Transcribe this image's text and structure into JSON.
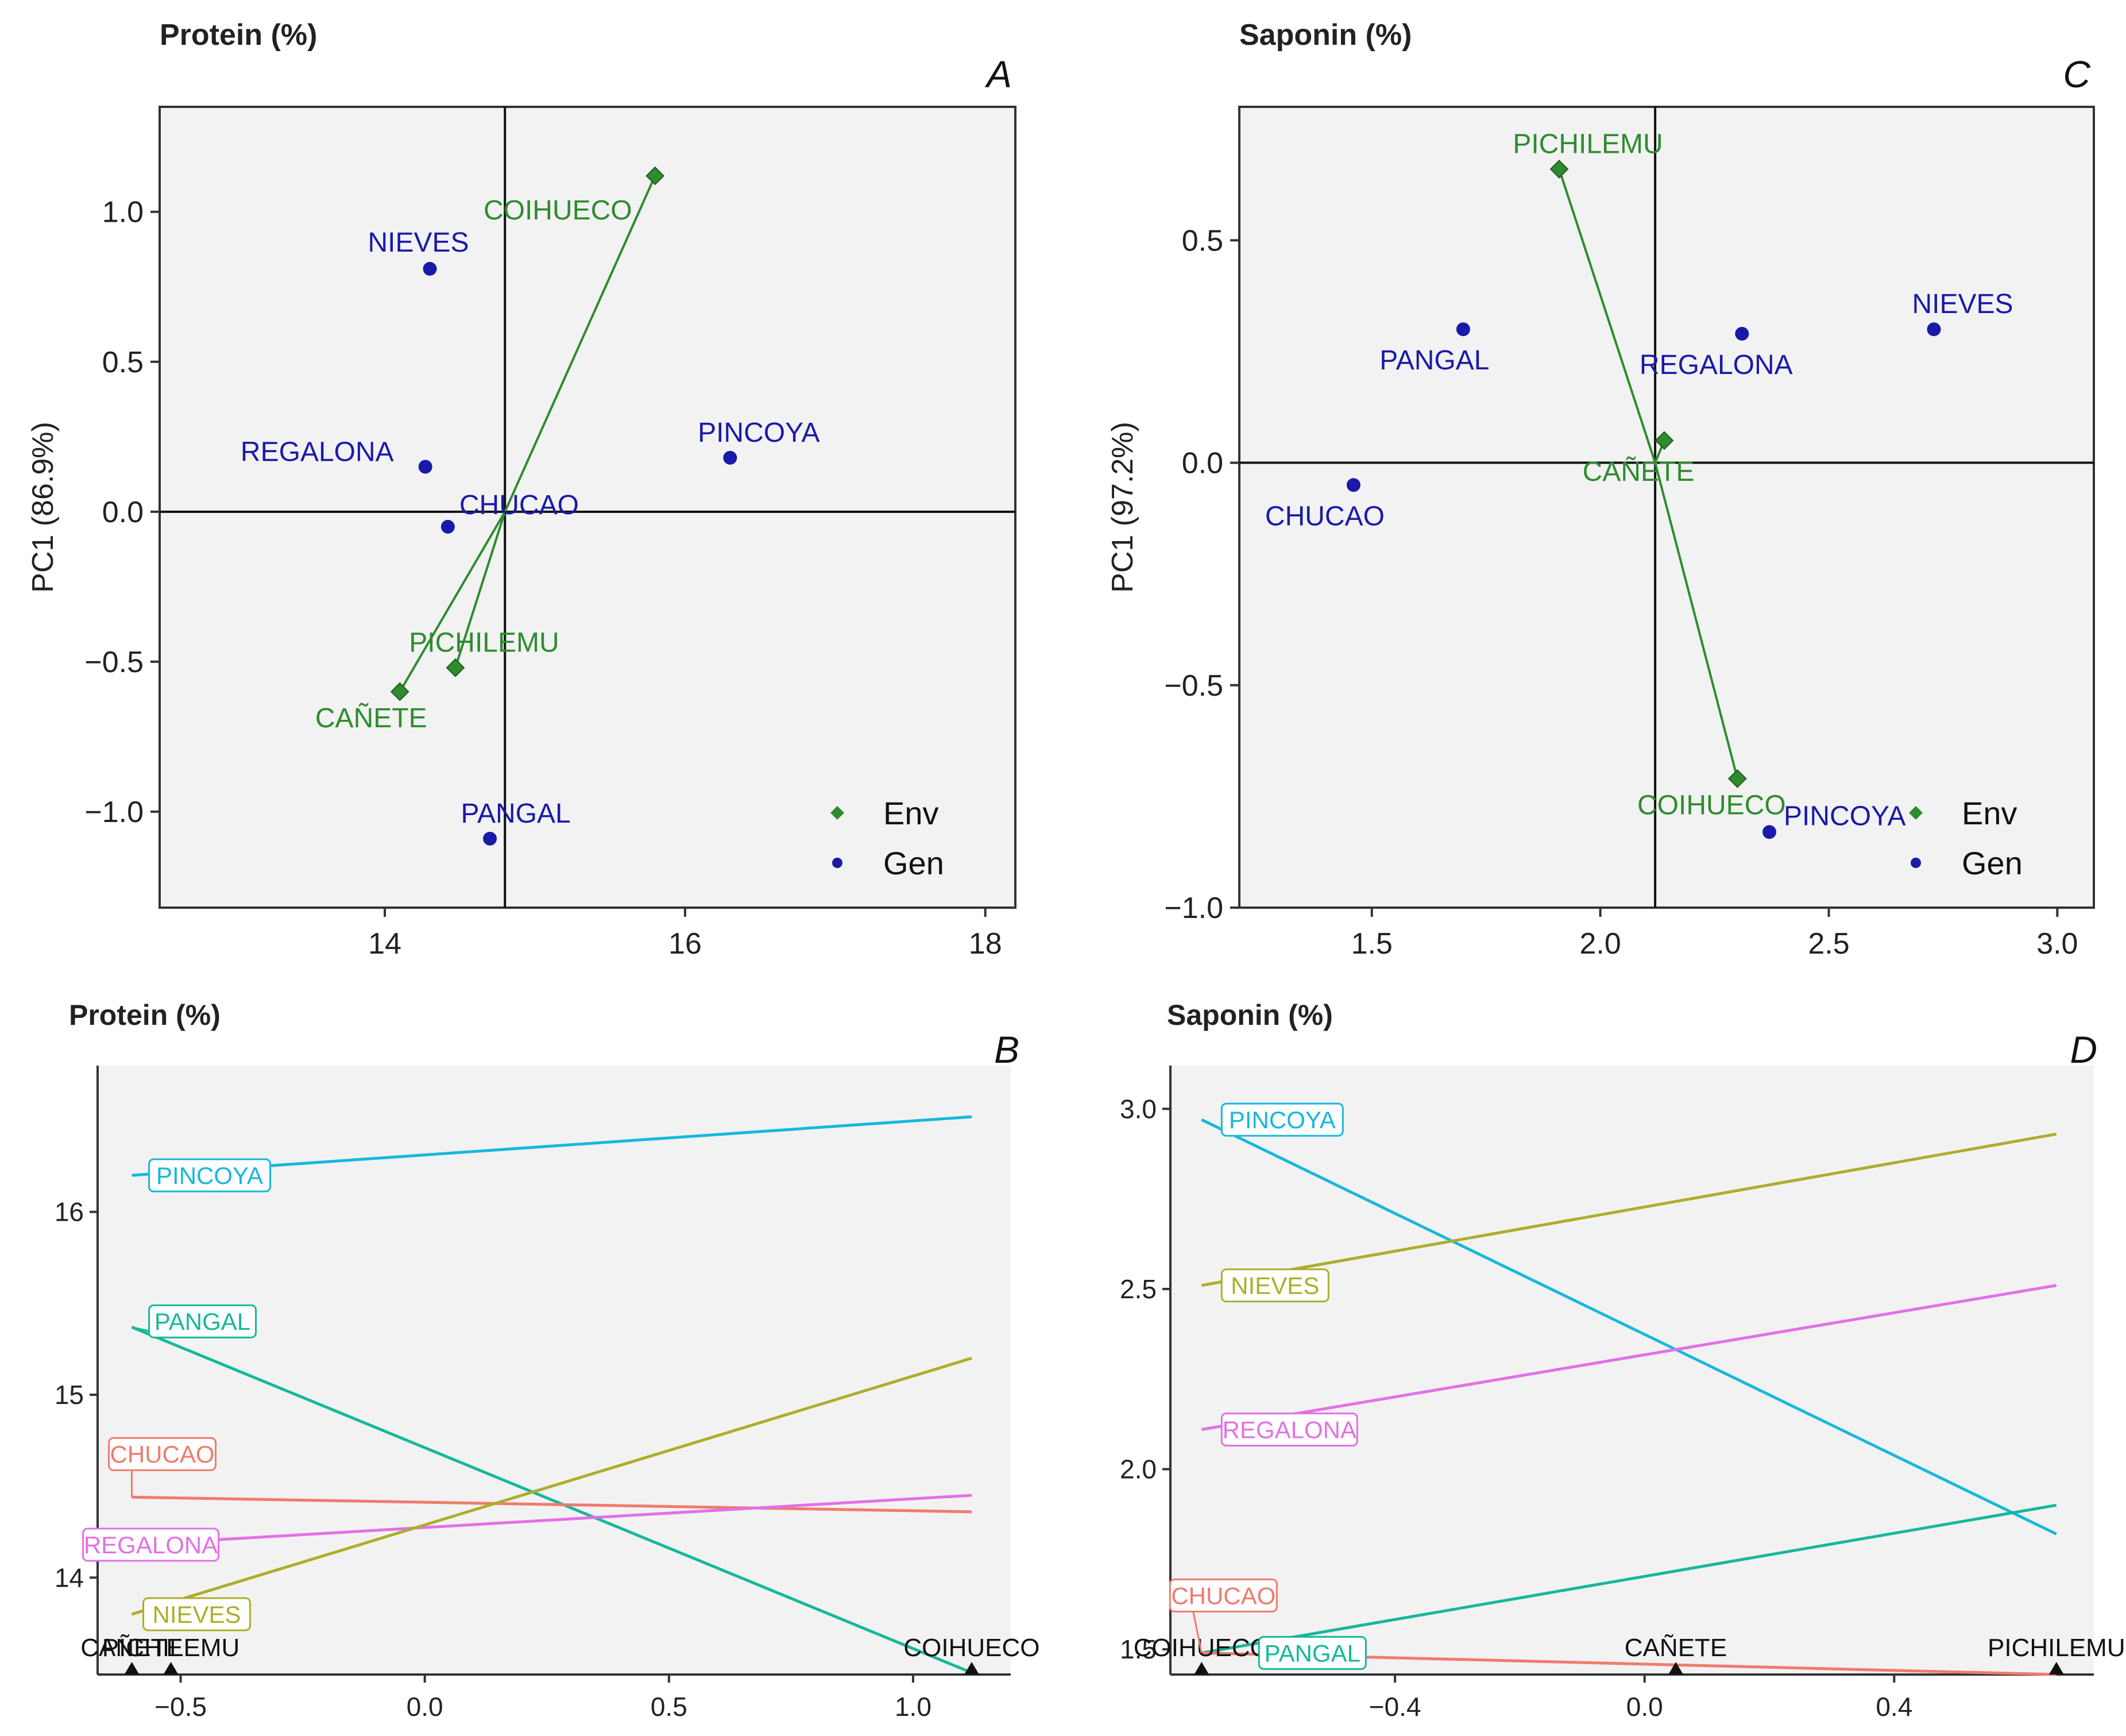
{
  "colors": {
    "env": "#2e8b2e",
    "gen": "#1a1aa8",
    "panel_bg": "#f2f2f2",
    "genotype": {
      "PINCOYA": "#17b7dc",
      "PANGAL": "#15b89a",
      "NIEVES": "#adad2a",
      "REGALONA": "#e270e6",
      "CHUCAO": "#ef7b6e"
    }
  },
  "chart_data": [
    {
      "id": "A",
      "type": "scatter",
      "title": "Protein (%)",
      "letter": "A",
      "ylabel": "PC1 (86.9%)",
      "xlabel": "",
      "xlim": [
        12.5,
        18.2
      ],
      "ylim": [
        -1.32,
        1.35
      ],
      "xticks": [
        14,
        16,
        18
      ],
      "yticks": [
        -1.0,
        -0.5,
        0.0,
        0.5,
        1.0
      ],
      "ref_x": 14.8,
      "ref_y": 0.0,
      "origin": [
        14.8,
        0.0
      ],
      "legend": {
        "position": "bottom-right",
        "entries": [
          "Env",
          "Gen"
        ]
      },
      "env": [
        {
          "name": "COIHUECO",
          "x": 15.8,
          "y": 1.12
        },
        {
          "name": "PICHILEMU",
          "x": 14.47,
          "y": -0.52
        },
        {
          "name": "CAÑETE",
          "x": 14.1,
          "y": -0.6
        }
      ],
      "gen": [
        {
          "name": "NIEVES",
          "x": 14.3,
          "y": 0.81
        },
        {
          "name": "PINCOYA",
          "x": 16.3,
          "y": 0.18
        },
        {
          "name": "REGALONA",
          "x": 14.27,
          "y": 0.15
        },
        {
          "name": "CHUCAO",
          "x": 14.42,
          "y": -0.05
        },
        {
          "name": "PANGAL",
          "x": 14.7,
          "y": -1.09
        }
      ]
    },
    {
      "id": "C",
      "type": "scatter",
      "title": "Saponin (%)",
      "letter": "C",
      "ylabel": "PC1 (97.2%)",
      "xlabel": "",
      "xlim": [
        1.21,
        3.08
      ],
      "ylim": [
        -1.0,
        0.8
      ],
      "xticks": [
        1.5,
        2.0,
        2.5,
        3.0
      ],
      "yticks": [
        -1.0,
        -0.5,
        0.0,
        0.5
      ],
      "ref_x": 2.12,
      "ref_y": 0.0,
      "origin": [
        2.12,
        0.0
      ],
      "legend": {
        "position": "bottom-right",
        "entries": [
          "Env",
          "Gen"
        ]
      },
      "env": [
        {
          "name": "PICHILEMU",
          "x": 1.91,
          "y": 0.66
        },
        {
          "name": "CAÑETE",
          "x": 2.14,
          "y": 0.05
        },
        {
          "name": "COIHUECO",
          "x": 2.3,
          "y": -0.71
        }
      ],
      "gen": [
        {
          "name": "PANGAL",
          "x": 1.7,
          "y": 0.3
        },
        {
          "name": "REGALONA",
          "x": 2.31,
          "y": 0.29
        },
        {
          "name": "NIEVES",
          "x": 2.73,
          "y": 0.3
        },
        {
          "name": "CHUCAO",
          "x": 1.46,
          "y": -0.05
        },
        {
          "name": "PINCOYA",
          "x": 2.37,
          "y": -0.83
        }
      ]
    },
    {
      "id": "B",
      "type": "line",
      "title": "Protein (%)",
      "letter": "B",
      "xlabel": "",
      "ylabel": "",
      "xlim": [
        -0.67,
        1.2
      ],
      "ylim": [
        13.47,
        16.8
      ],
      "xticks": [
        -0.5,
        0.0,
        0.5,
        1.0
      ],
      "yticks": [
        14,
        15,
        16
      ],
      "env_markers": [
        {
          "name": "CAÑETE",
          "x": -0.6
        },
        {
          "name": "PICHILEMU",
          "x": -0.52
        },
        {
          "name": "COIHUECO",
          "x": 1.12
        }
      ],
      "series": [
        {
          "name": "PINCOYA",
          "x": [
            -0.6,
            1.12
          ],
          "values": [
            16.2,
            16.52
          ]
        },
        {
          "name": "PANGAL",
          "x": [
            -0.6,
            1.12
          ],
          "values": [
            15.37,
            13.48
          ]
        },
        {
          "name": "CHUCAO",
          "x": [
            -0.6,
            1.12
          ],
          "values": [
            14.44,
            14.36
          ]
        },
        {
          "name": "REGALONA",
          "x": [
            -0.6,
            1.12
          ],
          "values": [
            14.18,
            14.45
          ]
        },
        {
          "name": "NIEVES",
          "x": [
            -0.6,
            1.12
          ],
          "values": [
            13.8,
            15.2
          ]
        }
      ]
    },
    {
      "id": "D",
      "type": "line",
      "title": "Saponin (%)",
      "letter": "D",
      "xlabel": "",
      "ylabel": "",
      "xlim": [
        -0.76,
        0.72
      ],
      "ylim": [
        1.43,
        3.12
      ],
      "xticks": [
        -0.4,
        0.0,
        0.4
      ],
      "yticks": [
        1.5,
        2.0,
        2.5,
        3.0
      ],
      "env_markers": [
        {
          "name": "COIHUECO",
          "x": -0.71
        },
        {
          "name": "CAÑETE",
          "x": 0.05
        },
        {
          "name": "PICHILEMU",
          "x": 0.66
        }
      ],
      "series": [
        {
          "name": "PINCOYA",
          "x": [
            -0.71,
            0.66
          ],
          "values": [
            2.97,
            1.82
          ]
        },
        {
          "name": "NIEVES",
          "x": [
            -0.71,
            0.66
          ],
          "values": [
            2.51,
            2.93
          ]
        },
        {
          "name": "REGALONA",
          "x": [
            -0.71,
            0.66
          ],
          "values": [
            2.11,
            2.51
          ]
        },
        {
          "name": "PANGAL",
          "x": [
            -0.71,
            0.66
          ],
          "values": [
            1.49,
            1.9
          ]
        },
        {
          "name": "CHUCAO",
          "x": [
            -0.71,
            0.66
          ],
          "values": [
            1.49,
            1.43
          ]
        }
      ]
    }
  ]
}
